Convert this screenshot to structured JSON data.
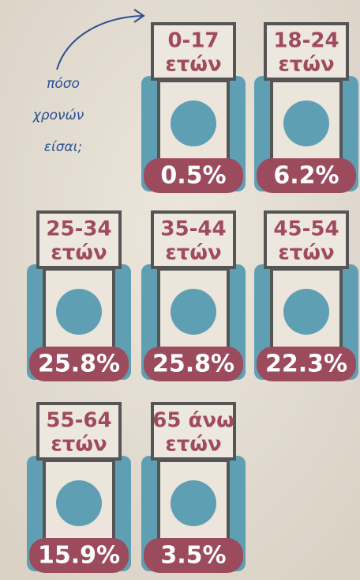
{
  "annotation": [
    "πόσο",
    "χρονών",
    "είσαι;"
  ],
  "items": [
    {
      "age": "0-17",
      "unit": "ετών",
      "value": "0.5%"
    },
    {
      "age": "18-24",
      "unit": "ετών",
      "value": "6.2%"
    },
    {
      "age": "25-34",
      "unit": "ετών",
      "value": "25.8%"
    },
    {
      "age": "35-44",
      "unit": "ετών",
      "value": "25.8%"
    },
    {
      "age": "45-54",
      "unit": "ετών",
      "value": "22.3%"
    },
    {
      "age": "55-64",
      "unit": "ετών",
      "value": "15.9%"
    },
    {
      "age": "65 άνω",
      "unit": "ετών",
      "value": "3.5%"
    }
  ]
}
